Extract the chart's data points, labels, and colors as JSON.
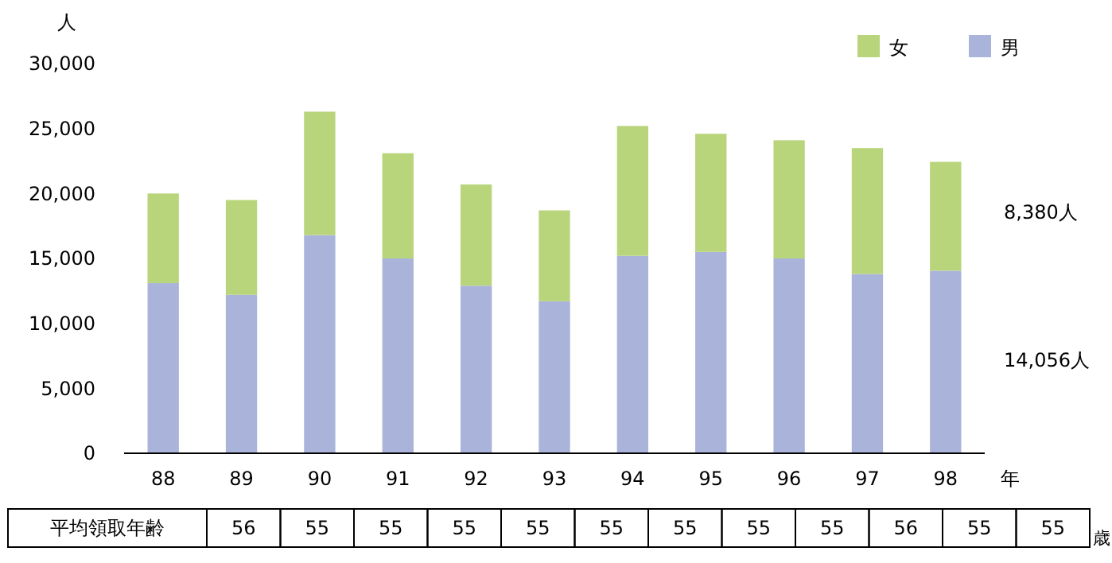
{
  "chart_data": {
    "type": "bar",
    "stacked": true,
    "ylabel": "人",
    "xlabel": "年",
    "categories": [
      "88",
      "89",
      "90",
      "91",
      "92",
      "93",
      "94",
      "95",
      "96",
      "97",
      "98"
    ],
    "series": [
      {
        "name": "男",
        "color": "#aab4da",
        "values": [
          13100,
          12200,
          16800,
          15000,
          12900,
          11700,
          15200,
          15500,
          15000,
          13800,
          14056
        ]
      },
      {
        "name": "女",
        "color": "#b9d57c",
        "values": [
          6900,
          7300,
          9500,
          8100,
          7800,
          7000,
          10000,
          9100,
          9100,
          9700,
          8380
        ]
      }
    ],
    "ylim": [
      0,
      30000
    ],
    "yticks": [
      {
        "value": 0,
        "label": "0"
      },
      {
        "value": 5000,
        "label": "5,000"
      },
      {
        "value": 10000,
        "label": "10,000"
      },
      {
        "value": 15000,
        "label": "15,000"
      },
      {
        "value": 20000,
        "label": "20,000"
      },
      {
        "value": 25000,
        "label": "25,000"
      },
      {
        "value": 30000,
        "label": "30,000"
      }
    ],
    "legend": "top right",
    "annotations": [
      "8,380人",
      "14,056人",
      "平均領取年齢",
      "56",
      "55",
      "55",
      "55",
      "55",
      "55",
      "55",
      "55",
      "55",
      "56",
      "55",
      "55",
      "歳"
    ]
  }
}
